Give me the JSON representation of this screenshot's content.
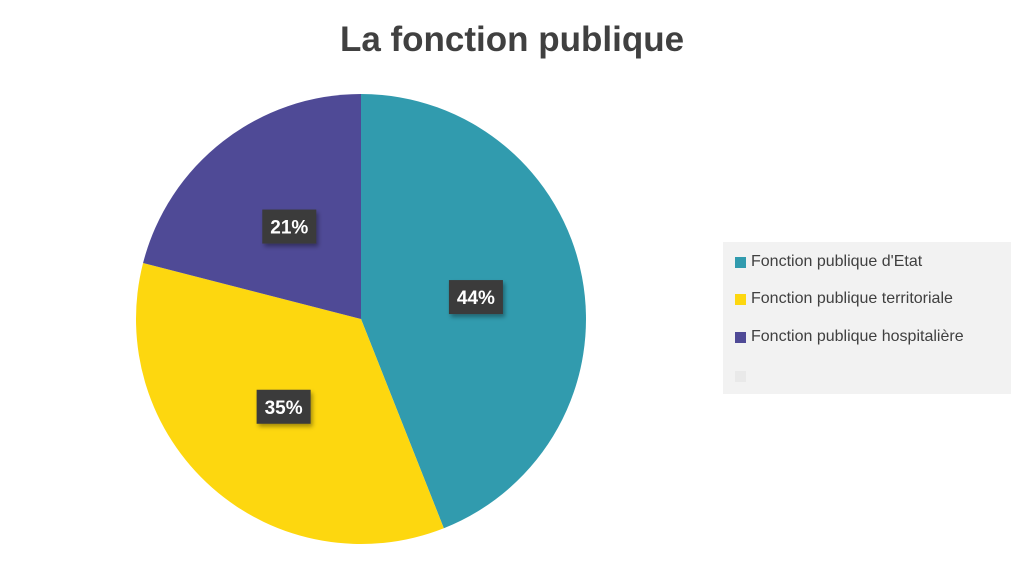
{
  "chart_data": {
    "type": "pie",
    "title": "La fonction publique",
    "slices": [
      {
        "label": "Fonction publique d'Etat",
        "value": 44,
        "display": "44%",
        "color": "#319bae"
      },
      {
        "label": "Fonction publique territoriale",
        "value": 35,
        "display": "35%",
        "color": "#fdd70f"
      },
      {
        "label": "Fonction publique hospitalière",
        "value": 21,
        "display": "21%",
        "color": "#4f4a96"
      }
    ],
    "legend": {
      "position": "right",
      "entries": [
        {
          "label": "Fonction publique d'Etat",
          "color": "#319bae"
        },
        {
          "label": "Fonction publique territoriale",
          "color": "#fdd70f"
        },
        {
          "label": "Fonction publique hospitalière",
          "color": "#4f4a96"
        },
        {
          "label": "",
          "color": "#e9e9e9"
        }
      ]
    },
    "data_label_style": {
      "background": "#3a3a3a",
      "text_color": "#ffffff"
    }
  }
}
